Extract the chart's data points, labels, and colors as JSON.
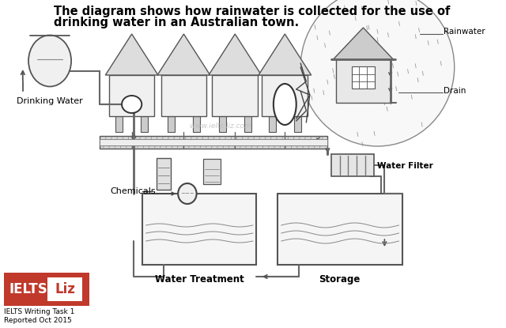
{
  "title_line1": "The diagram shows how rainwater is collected for the use of",
  "title_line2": "drinking water in an Australian town.",
  "title_fontsize": 10.5,
  "bg_color": "#ffffff",
  "watermark": "www.ielts liz.com",
  "labels": {
    "rainwater": "Rainwater",
    "drain": "Drain",
    "drinking_water": "Drinking Water",
    "water_filter": "Water Filter",
    "chemicals": "Chemicals",
    "water_treatment": "Water Treatment",
    "storage": "Storage"
  },
  "ielts_box": {
    "bg": "#c0392b",
    "text_ielts": "IELTS",
    "text_liz": "Liz",
    "sub1": "IELTS Writing Task 1",
    "sub2": "Reported Oct 2015"
  },
  "line_color": "#555555",
  "house_roof_color": "#cccccc",
  "house_body_color": "#eeeeee",
  "pipe_color": "#aaaaaa",
  "tank_color": "#eeeeee"
}
